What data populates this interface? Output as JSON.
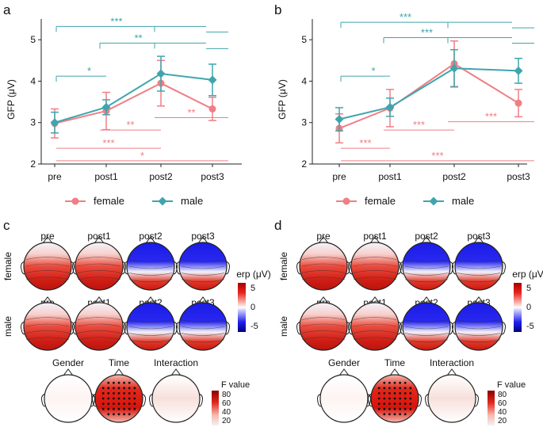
{
  "colors": {
    "female": "#ef7f86",
    "male": "#3fa5ad",
    "axis": "#222222"
  },
  "chart_data": [
    {
      "panel": "a",
      "type": "line",
      "ylabel": "GFP (μV)",
      "ylim": [
        2,
        5.5
      ],
      "yticks": [
        "2",
        "3",
        "4",
        "5"
      ],
      "categories": [
        "pre",
        "post1",
        "post2",
        "post3"
      ],
      "series": [
        {
          "name": "female",
          "key": "female",
          "values": [
            2.98,
            3.28,
            3.95,
            3.33
          ],
          "errors": [
            0.35,
            0.45,
            0.55,
            0.28
          ]
        },
        {
          "name": "male",
          "key": "male",
          "values": [
            3.0,
            3.37,
            4.18,
            4.03
          ],
          "errors": [
            0.25,
            0.18,
            0.42,
            0.38
          ]
        }
      ],
      "male_sig": [
        {
          "label": "***",
          "level": 5.32,
          "start": 0,
          "ends": [
            2,
            3
          ]
        },
        {
          "label": "**",
          "level": 4.92,
          "start": 1,
          "ends": [
            2,
            3
          ]
        },
        {
          "label": "*",
          "level": 4.12,
          "start": 0,
          "ends": [
            1
          ]
        }
      ],
      "female_sig": [
        {
          "label": "**",
          "level": 2.82,
          "start": 1,
          "ends": [
            2
          ]
        },
        {
          "label": "**",
          "level": 3.12,
          "start": 2,
          "ends": [
            3
          ]
        },
        {
          "label": "***",
          "level": 2.38,
          "start": 0,
          "ends": [
            2
          ]
        },
        {
          "label": "*",
          "level": 2.08,
          "start": 0,
          "ends": [
            3
          ]
        }
      ]
    },
    {
      "panel": "b",
      "type": "line",
      "ylabel": "GFP (μV)",
      "ylim": [
        2,
        5.5
      ],
      "yticks": [
        "2",
        "3",
        "4",
        "5"
      ],
      "categories": [
        "pre",
        "post1",
        "post2",
        "post3"
      ],
      "series": [
        {
          "name": "female",
          "key": "female",
          "values": [
            2.86,
            3.35,
            4.42,
            3.47
          ],
          "errors": [
            0.35,
            0.45,
            0.55,
            0.33
          ]
        },
        {
          "name": "male",
          "key": "male",
          "values": [
            3.08,
            3.37,
            4.31,
            4.25
          ],
          "errors": [
            0.28,
            0.22,
            0.45,
            0.3
          ]
        }
      ],
      "male_sig": [
        {
          "label": "***",
          "level": 5.42,
          "start": 0,
          "ends": [
            2,
            3
          ]
        },
        {
          "label": "***",
          "level": 5.05,
          "start": 1,
          "ends": [
            2,
            3
          ]
        },
        {
          "label": "*",
          "level": 4.12,
          "start": 0,
          "ends": [
            1
          ]
        }
      ],
      "female_sig": [
        {
          "label": "***",
          "level": 2.82,
          "start": 1,
          "ends": [
            2
          ]
        },
        {
          "label": "***",
          "level": 3.02,
          "start": 2,
          "ends": [
            3
          ]
        },
        {
          "label": "***",
          "level": 2.38,
          "start": 0,
          "ends": [
            1
          ]
        },
        {
          "label": "***",
          "level": 2.08,
          "start": 0,
          "ends": [
            2,
            3
          ]
        }
      ]
    }
  ],
  "legend": {
    "female": "female",
    "male": "male"
  },
  "topo_panels": [
    {
      "panel": "c",
      "time_labels": [
        "pre",
        "post1",
        "post2",
        "post3"
      ],
      "rows": [
        {
          "label": "female",
          "values": [
            6,
            4,
            -4,
            -4
          ]
        },
        {
          "label": "male",
          "values": [
            5,
            2,
            -4,
            -4
          ]
        }
      ],
      "colorbar": {
        "title": "erp (μV)",
        "ticks": [
          "5",
          "0",
          "-5"
        ]
      },
      "effects": [
        {
          "label": "Gender",
          "strength": 0.04
        },
        {
          "label": "Time",
          "strength": 1.0
        },
        {
          "label": "Interaction",
          "strength": 0.12
        }
      ],
      "fbar": {
        "title": "F value",
        "ticks": [
          "80",
          "60",
          "40",
          "20"
        ]
      }
    },
    {
      "panel": "d",
      "time_labels": [
        "pre",
        "post1",
        "post2",
        "post3"
      ],
      "rows": [
        {
          "label": "female",
          "values": [
            4,
            3,
            -4,
            -4
          ]
        },
        {
          "label": "male",
          "values": [
            6,
            2,
            -4,
            -4
          ]
        }
      ],
      "colorbar": {
        "title": "erp (μV)",
        "ticks": [
          "5",
          "0",
          "-5"
        ]
      },
      "effects": [
        {
          "label": "Gender",
          "strength": 0.02
        },
        {
          "label": "Time",
          "strength": 1.0
        },
        {
          "label": "Interaction",
          "strength": 0.15
        }
      ],
      "fbar": {
        "title": "F value",
        "ticks": [
          "80",
          "60",
          "40",
          "20"
        ]
      }
    }
  ]
}
